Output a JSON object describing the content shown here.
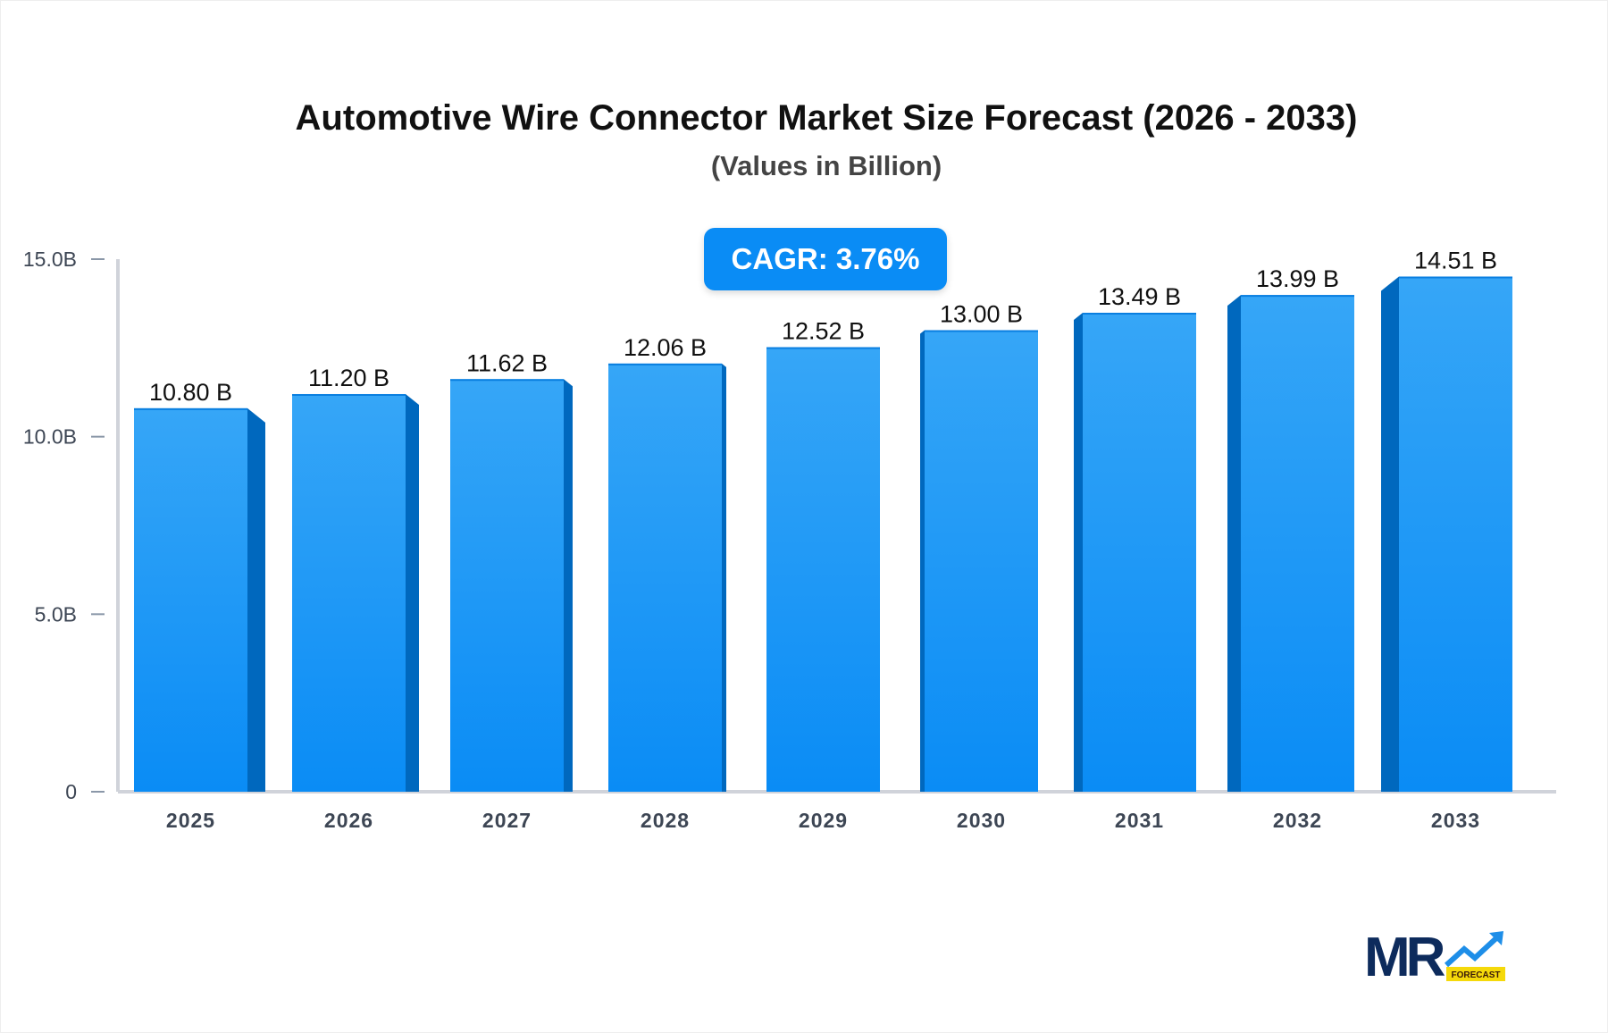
{
  "chart_data": {
    "type": "bar",
    "title": "Automotive Wire Connector Market Size Forecast (2026 - 2033)",
    "subtitle": "(Values in Billion)",
    "annotation": "CAGR: 3.76%",
    "categories": [
      "2025",
      "2026",
      "2027",
      "2028",
      "2029",
      "2030",
      "2031",
      "2032",
      "2033"
    ],
    "values": [
      10.8,
      11.2,
      11.62,
      12.06,
      12.52,
      13.0,
      13.49,
      13.99,
      14.51
    ],
    "data_labels": [
      "10.80 B",
      "11.20 B",
      "11.62 B",
      "12.06 B",
      "12.52 B",
      "13.00 B",
      "13.49 B",
      "13.99 B",
      "14.51 B"
    ],
    "yticks": [
      0,
      5,
      10,
      15
    ],
    "ytick_labels": [
      "0",
      "5.0B",
      "10.0B",
      "15.0B"
    ],
    "ylim": [
      0,
      15
    ],
    "grid": false,
    "colors": {
      "bar_top": "#36a6f7",
      "bar_bottom": "#0a8cf5",
      "bar_side": "#0068be",
      "axis": "#d0d3da"
    }
  },
  "logo": {
    "text": "MR",
    "badge": "FORECAST"
  }
}
